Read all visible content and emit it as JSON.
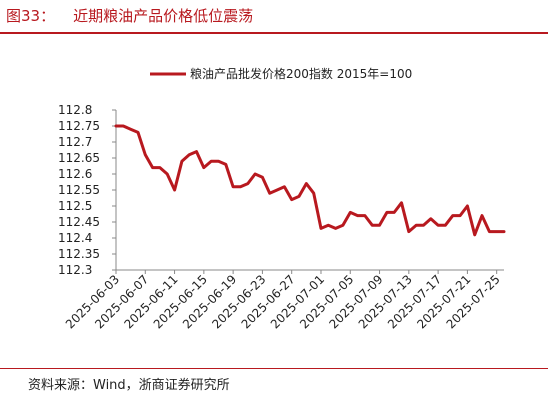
{
  "figure": {
    "label": "图33：",
    "title": "近期粮油产品价格低位震荡",
    "source": "资料来源：Wind，浙商证券研究所"
  },
  "chart_data": {
    "type": "line",
    "title": "",
    "xlabel": "",
    "ylabel": "",
    "ylim": [
      112.3,
      112.8
    ],
    "yticks": [
      "112.3",
      "112.35",
      "112.4",
      "112.45",
      "112.5",
      "112.55",
      "112.6",
      "112.65",
      "112.7",
      "112.75",
      "112.8"
    ],
    "xticks": [
      "2025-06-03",
      "2025-06-07",
      "2025-06-11",
      "2025-06-15",
      "2025-06-19",
      "2025-06-23",
      "2025-06-27",
      "2025-07-01",
      "2025-07-05",
      "2025-07-09",
      "2025-07-13",
      "2025-07-17",
      "2025-07-21",
      "2025-07-25"
    ],
    "grid": false,
    "legend_position": "top",
    "series": [
      {
        "name": "粮油产品批发价格200指数 2015年=100",
        "color": "#b8191f",
        "x": [
          "2025-06-03",
          "2025-06-04",
          "2025-06-05",
          "2025-06-06",
          "2025-06-07",
          "2025-06-08",
          "2025-06-09",
          "2025-06-10",
          "2025-06-11",
          "2025-06-12",
          "2025-06-13",
          "2025-06-14",
          "2025-06-15",
          "2025-06-16",
          "2025-06-17",
          "2025-06-18",
          "2025-06-19",
          "2025-06-20",
          "2025-06-21",
          "2025-06-22",
          "2025-06-23",
          "2025-06-24",
          "2025-06-25",
          "2025-06-26",
          "2025-06-27",
          "2025-06-28",
          "2025-06-29",
          "2025-06-30",
          "2025-07-01",
          "2025-07-02",
          "2025-07-03",
          "2025-07-04",
          "2025-07-05",
          "2025-07-06",
          "2025-07-07",
          "2025-07-08",
          "2025-07-09",
          "2025-07-10",
          "2025-07-11",
          "2025-07-12",
          "2025-07-13",
          "2025-07-14",
          "2025-07-15",
          "2025-07-16",
          "2025-07-17",
          "2025-07-18",
          "2025-07-19",
          "2025-07-20",
          "2025-07-21",
          "2025-07-22",
          "2025-07-23",
          "2025-07-24",
          "2025-07-25",
          "2025-07-26"
        ],
        "values": [
          112.75,
          112.75,
          112.74,
          112.73,
          112.66,
          112.62,
          112.62,
          112.6,
          112.55,
          112.64,
          112.66,
          112.67,
          112.62,
          112.64,
          112.64,
          112.63,
          112.56,
          112.56,
          112.57,
          112.6,
          112.59,
          112.54,
          112.55,
          112.56,
          112.52,
          112.53,
          112.57,
          112.54,
          112.43,
          112.44,
          112.43,
          112.44,
          112.48,
          112.47,
          112.47,
          112.44,
          112.44,
          112.48,
          112.48,
          112.51,
          112.42,
          112.44,
          112.44,
          112.46,
          112.44,
          112.44,
          112.47,
          112.47,
          112.5,
          112.41,
          112.47,
          112.42,
          112.42,
          112.42
        ]
      }
    ]
  }
}
